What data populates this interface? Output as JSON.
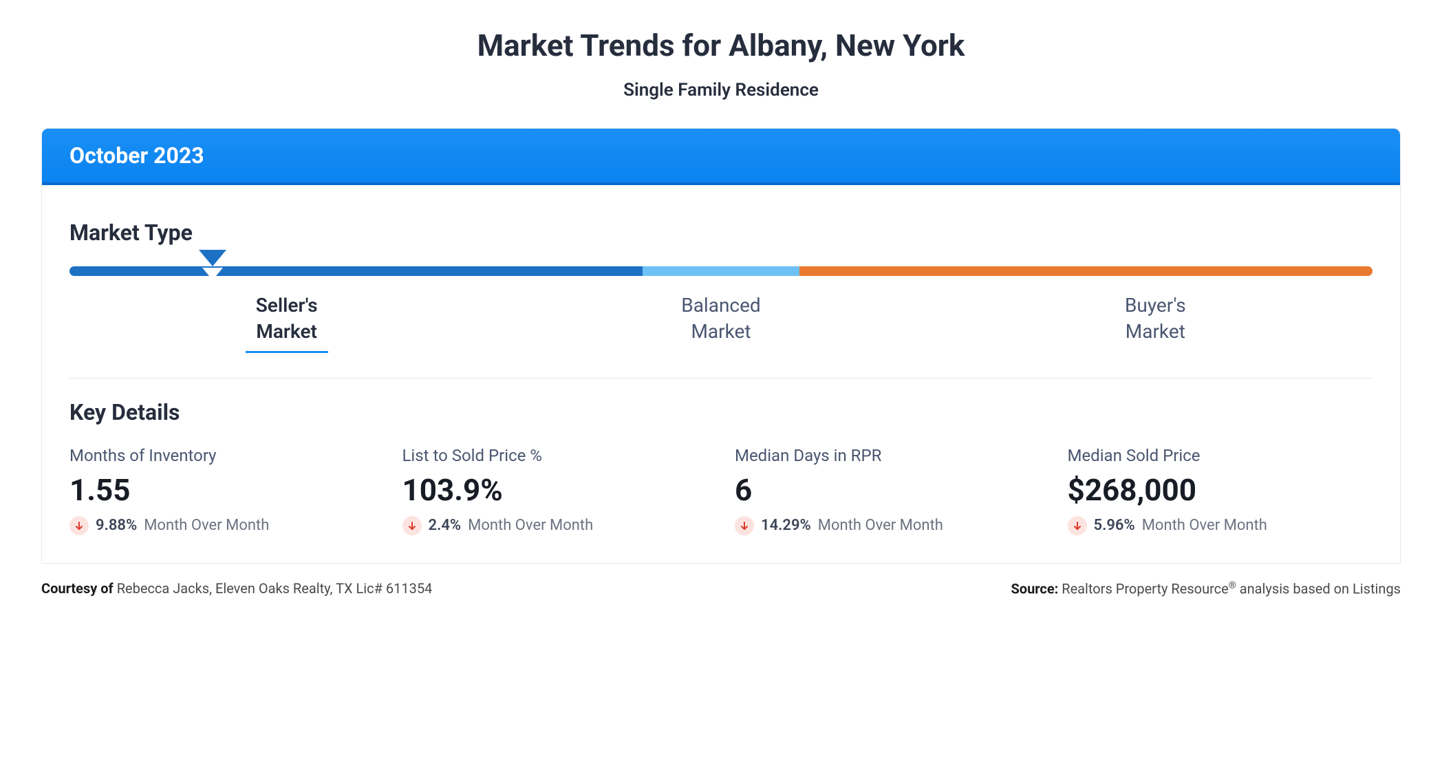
{
  "header": {
    "title": "Market Trends for Albany, New York",
    "subtitle": "Single Family Residence"
  },
  "card": {
    "month_label": "October 2023",
    "header_bg_top": "#1a8ef5",
    "header_bg_bottom": "#0a84f0",
    "header_border_bottom": "#0a6acc"
  },
  "market_type": {
    "section_title": "Market Type",
    "segments": [
      {
        "label_line1": "Seller's",
        "label_line2": "Market",
        "color": "#1d71c4",
        "width_pct": 44,
        "active": true
      },
      {
        "label_line1": "Balanced",
        "label_line2": "Market",
        "color": "#6ec1f5",
        "width_pct": 12,
        "active": false
      },
      {
        "label_line1": "Buyer's",
        "label_line2": "Market",
        "color": "#e8792f",
        "width_pct": 44,
        "active": false
      }
    ],
    "pointer": {
      "position_pct": 11,
      "border_color": "#1d71c4",
      "fill_color": "#ffffff"
    },
    "label_color": "#4a5670",
    "active_label_color": "#262d3d",
    "active_underline_color": "#1a8ef5"
  },
  "key_details": {
    "section_title": "Key Details",
    "metrics": [
      {
        "label": "Months of Inventory",
        "value": "1.55",
        "delta_pct": "9.88%",
        "delta_direction": "down",
        "delta_period": "Month Over Month"
      },
      {
        "label": "List to Sold Price %",
        "value": "103.9%",
        "delta_pct": "2.4%",
        "delta_direction": "down",
        "delta_period": "Month Over Month"
      },
      {
        "label": "Median Days in RPR",
        "value": "6",
        "delta_pct": "14.29%",
        "delta_direction": "down",
        "delta_period": "Month Over Month"
      },
      {
        "label": "Median Sold Price",
        "value": "$268,000",
        "delta_pct": "5.96%",
        "delta_direction": "down",
        "delta_period": "Month Over Month"
      }
    ],
    "delta_style": {
      "down_arrow_color": "#d93b2b",
      "down_bg_color": "#fde3df",
      "pct_color": "#3c4658"
    }
  },
  "footer": {
    "courtesy_label": "Courtesy of",
    "courtesy_text": "Rebecca Jacks, Eleven Oaks Realty, TX Lic# 611354",
    "source_label": "Source:",
    "source_text_pre": "Realtors Property Resource",
    "source_text_post": " analysis based on Listings"
  },
  "colors": {
    "text_primary": "#262d3d",
    "text_secondary": "#4a5670",
    "text_muted": "#6b7280",
    "divider": "#e5e7eb",
    "background": "#ffffff"
  },
  "typography": {
    "title_fontsize_pt": 33,
    "subtitle_fontsize_pt": 20,
    "section_title_fontsize_pt": 24,
    "metric_value_fontsize_pt": 33,
    "metric_label_fontsize_pt": 18,
    "delta_fontsize_pt": 17,
    "footer_fontsize_pt": 15
  }
}
